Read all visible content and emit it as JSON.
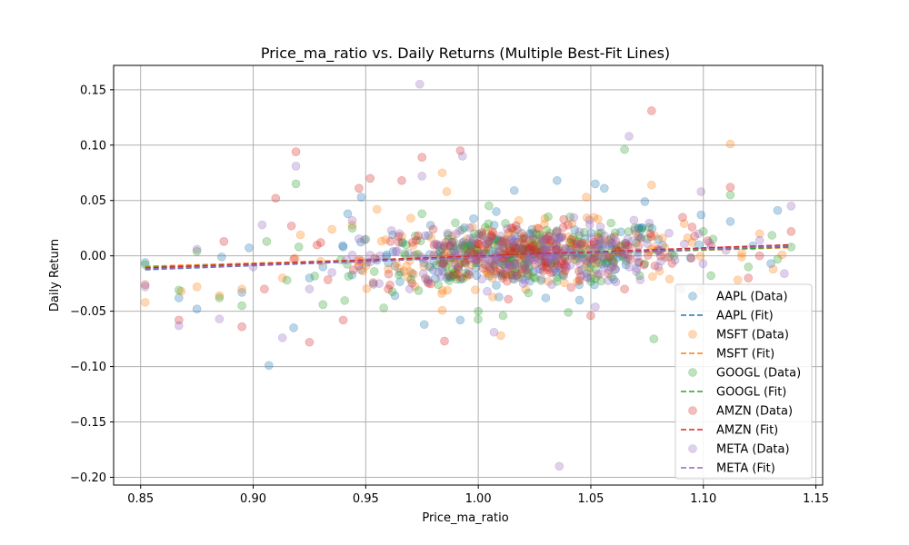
{
  "chart_data": {
    "type": "scatter",
    "title": "Price_ma_ratio vs. Daily Returns (Multiple Best-Fit Lines)",
    "xlabel": "Price_ma_ratio",
    "ylabel": "Daily Return",
    "xlim": [
      0.838,
      1.153
    ],
    "ylim": [
      -0.207,
      0.172
    ],
    "xticks": [
      "0.85",
      "0.90",
      "0.95",
      "1.00",
      "1.05",
      "1.10",
      "1.15"
    ],
    "xtick_values": [
      0.85,
      0.9,
      0.95,
      1.0,
      1.05,
      1.1,
      1.15
    ],
    "yticks": [
      "0.15",
      "0.10",
      "0.05",
      "0.00",
      "−0.05",
      "−0.10",
      "−0.15",
      "−0.20"
    ],
    "ytick_values": [
      0.15,
      0.1,
      0.05,
      0.0,
      -0.05,
      -0.1,
      -0.15,
      -0.2
    ],
    "grid": true,
    "legend_position": "lower-right",
    "series": [
      {
        "name": "AAPL",
        "data_label": "AAPL (Data)",
        "fit_label": "AAPL (Fit)",
        "color": "#1f77b4",
        "fit": {
          "x": [
            0.852,
            1.139
          ],
          "y": [
            -0.0125,
            0.0095
          ]
        },
        "points": [
          [
            0.852,
            -0.006
          ],
          [
            0.867,
            -0.038
          ],
          [
            0.875,
            -0.048
          ],
          [
            0.886,
            -0.001
          ],
          [
            0.895,
            -0.033
          ],
          [
            0.907,
            -0.099
          ],
          [
            0.918,
            -0.065
          ],
          [
            0.931,
            -0.01
          ],
          [
            0.942,
            0.038
          ],
          [
            0.948,
            0.053
          ],
          [
            0.963,
            -0.036
          ],
          [
            0.976,
            -0.062
          ],
          [
            0.986,
            -0.02
          ],
          [
            0.992,
            -0.058
          ],
          [
            1.008,
            0.04
          ],
          [
            1.016,
            0.059
          ],
          [
            1.03,
            -0.038
          ],
          [
            1.035,
            0.068
          ],
          [
            1.045,
            -0.04
          ],
          [
            1.052,
            0.065
          ],
          [
            1.056,
            0.061
          ],
          [
            1.074,
            0.049
          ],
          [
            1.09,
            -0.03
          ],
          [
            1.099,
            0.037
          ],
          [
            1.112,
            0.031
          ],
          [
            1.122,
            0.009
          ],
          [
            1.13,
            -0.007
          ],
          [
            1.133,
            0.041
          ],
          [
            0.962,
            0.019
          ],
          [
            0.983,
            0.004
          ],
          [
            1.003,
            -0.008
          ],
          [
            1.012,
            0.012
          ],
          [
            1.022,
            -0.018
          ],
          [
            1.04,
            0.006
          ],
          [
            1.061,
            -0.012
          ],
          [
            1.08,
            0.015
          ],
          [
            0.925,
            -0.02
          ],
          [
            0.94,
            0.008
          ],
          [
            0.955,
            -0.004
          ],
          [
            1.098,
            0.01
          ]
        ]
      },
      {
        "name": "MSFT",
        "data_label": "MSFT (Data)",
        "fit_label": "MSFT (Fit)",
        "color": "#ff7f0e",
        "fit": {
          "x": [
            0.852,
            1.139
          ],
          "y": [
            -0.0095,
            0.0075
          ]
        },
        "points": [
          [
            0.852,
            -0.042
          ],
          [
            0.868,
            -0.032
          ],
          [
            0.875,
            -0.028
          ],
          [
            0.885,
            -0.036
          ],
          [
            0.895,
            -0.03
          ],
          [
            0.913,
            -0.02
          ],
          [
            0.921,
            0.019
          ],
          [
            0.935,
            0.024
          ],
          [
            0.944,
            0.028
          ],
          [
            0.955,
            0.042
          ],
          [
            0.97,
            0.034
          ],
          [
            0.984,
            0.075
          ],
          [
            0.986,
            0.058
          ],
          [
            1.01,
            -0.072
          ],
          [
            1.038,
            -0.016
          ],
          [
            1.048,
            0.053
          ],
          [
            1.077,
            0.064
          ],
          [
            1.085,
            -0.021
          ],
          [
            1.112,
            0.101
          ],
          [
            1.117,
            -0.001
          ],
          [
            1.131,
            -0.012
          ],
          [
            1.135,
            0.001
          ],
          [
            0.96,
            -0.012
          ],
          [
            0.998,
            0.01
          ],
          [
            1.02,
            0.002
          ],
          [
            1.06,
            -0.006
          ],
          [
            1.07,
            0.02
          ],
          [
            0.93,
            -0.005
          ],
          [
            1.095,
            0.012
          ],
          [
            1.125,
            0.02
          ]
        ]
      },
      {
        "name": "GOOGL",
        "data_label": "GOOGL (Data)",
        "fit_label": "GOOGL (Fit)",
        "color": "#2ca02c",
        "fit": {
          "x": [
            0.852,
            1.139
          ],
          "y": [
            -0.0105,
            0.008
          ]
        },
        "points": [
          [
            0.852,
            -0.008
          ],
          [
            0.867,
            -0.031
          ],
          [
            0.875,
            0.004
          ],
          [
            0.885,
            -0.038
          ],
          [
            0.895,
            -0.045
          ],
          [
            0.906,
            0.013
          ],
          [
            0.919,
            0.065
          ],
          [
            0.931,
            -0.044
          ],
          [
            0.944,
            0.025
          ],
          [
            0.958,
            -0.047
          ],
          [
            0.975,
            0.038
          ],
          [
            1.0,
            -0.05
          ],
          [
            1.011,
            -0.054
          ],
          [
            1.04,
            -0.051
          ],
          [
            1.065,
            0.096
          ],
          [
            1.078,
            -0.075
          ],
          [
            1.1,
            0.022
          ],
          [
            1.112,
            0.055
          ],
          [
            1.133,
            -0.003
          ],
          [
            1.139,
            0.008
          ],
          [
            0.968,
            0.01
          ],
          [
            0.99,
            -0.015
          ],
          [
            1.025,
            0.005
          ],
          [
            1.05,
            -0.02
          ],
          [
            1.087,
            0.0
          ],
          [
            0.915,
            -0.022
          ],
          [
            0.95,
            0.015
          ],
          [
            1.12,
            -0.01
          ]
        ]
      },
      {
        "name": "AMZN",
        "data_label": "AMZN (Data)",
        "fit_label": "AMZN (Fit)",
        "color": "#d62728",
        "fit": {
          "x": [
            0.852,
            1.139
          ],
          "y": [
            -0.011,
            0.01
          ]
        },
        "points": [
          [
            0.852,
            -0.026
          ],
          [
            0.867,
            -0.058
          ],
          [
            0.887,
            0.013
          ],
          [
            0.895,
            -0.064
          ],
          [
            0.91,
            0.052
          ],
          [
            0.917,
            0.027
          ],
          [
            0.919,
            0.094
          ],
          [
            0.925,
            -0.078
          ],
          [
            0.947,
            0.061
          ],
          [
            0.952,
            0.07
          ],
          [
            0.966,
            0.068
          ],
          [
            0.975,
            0.089
          ],
          [
            0.985,
            -0.077
          ],
          [
            0.992,
            0.095
          ],
          [
            1.038,
            0.033
          ],
          [
            1.05,
            -0.054
          ],
          [
            1.077,
            0.131
          ],
          [
            1.112,
            0.062
          ],
          [
            1.125,
            0.0
          ],
          [
            1.139,
            0.022
          ],
          [
            0.94,
            -0.058
          ],
          [
            0.96,
            -0.03
          ],
          [
            0.98,
            0.024
          ],
          [
            1.005,
            -0.01
          ],
          [
            1.03,
            0.015
          ],
          [
            1.065,
            -0.03
          ],
          [
            1.095,
            0.026
          ],
          [
            0.93,
            0.012
          ],
          [
            1.12,
            -0.02
          ],
          [
            0.905,
            -0.03
          ]
        ]
      },
      {
        "name": "META",
        "data_label": "META (Data)",
        "fit_label": "META (Fit)",
        "color": "#9467bd",
        "fit": {
          "x": [
            0.852,
            1.139
          ],
          "y": [
            -0.012,
            0.009
          ]
        },
        "points": [
          [
            0.852,
            -0.028
          ],
          [
            0.867,
            -0.063
          ],
          [
            0.875,
            0.006
          ],
          [
            0.885,
            -0.057
          ],
          [
            0.904,
            0.028
          ],
          [
            0.913,
            -0.074
          ],
          [
            0.919,
            0.081
          ],
          [
            0.925,
            -0.03
          ],
          [
            0.944,
            0.032
          ],
          [
            0.956,
            -0.025
          ],
          [
            0.974,
            0.155
          ],
          [
            0.975,
            0.072
          ],
          [
            0.993,
            0.09
          ],
          [
            1.007,
            -0.069
          ],
          [
            1.036,
            -0.19
          ],
          [
            1.052,
            -0.046
          ],
          [
            1.067,
            0.108
          ],
          [
            1.099,
            0.058
          ],
          [
            1.125,
            0.014
          ],
          [
            1.136,
            -0.016
          ],
          [
            1.139,
            0.045
          ],
          [
            0.965,
            0.02
          ],
          [
            0.985,
            -0.005
          ],
          [
            1.01,
            0.018
          ],
          [
            1.02,
            -0.025
          ],
          [
            1.045,
            0.01
          ],
          [
            1.08,
            -0.01
          ],
          [
            0.935,
            -0.015
          ],
          [
            1.11,
            0.005
          ],
          [
            0.9,
            -0.01
          ]
        ]
      }
    ],
    "cloud_points_per_series": 180
  }
}
